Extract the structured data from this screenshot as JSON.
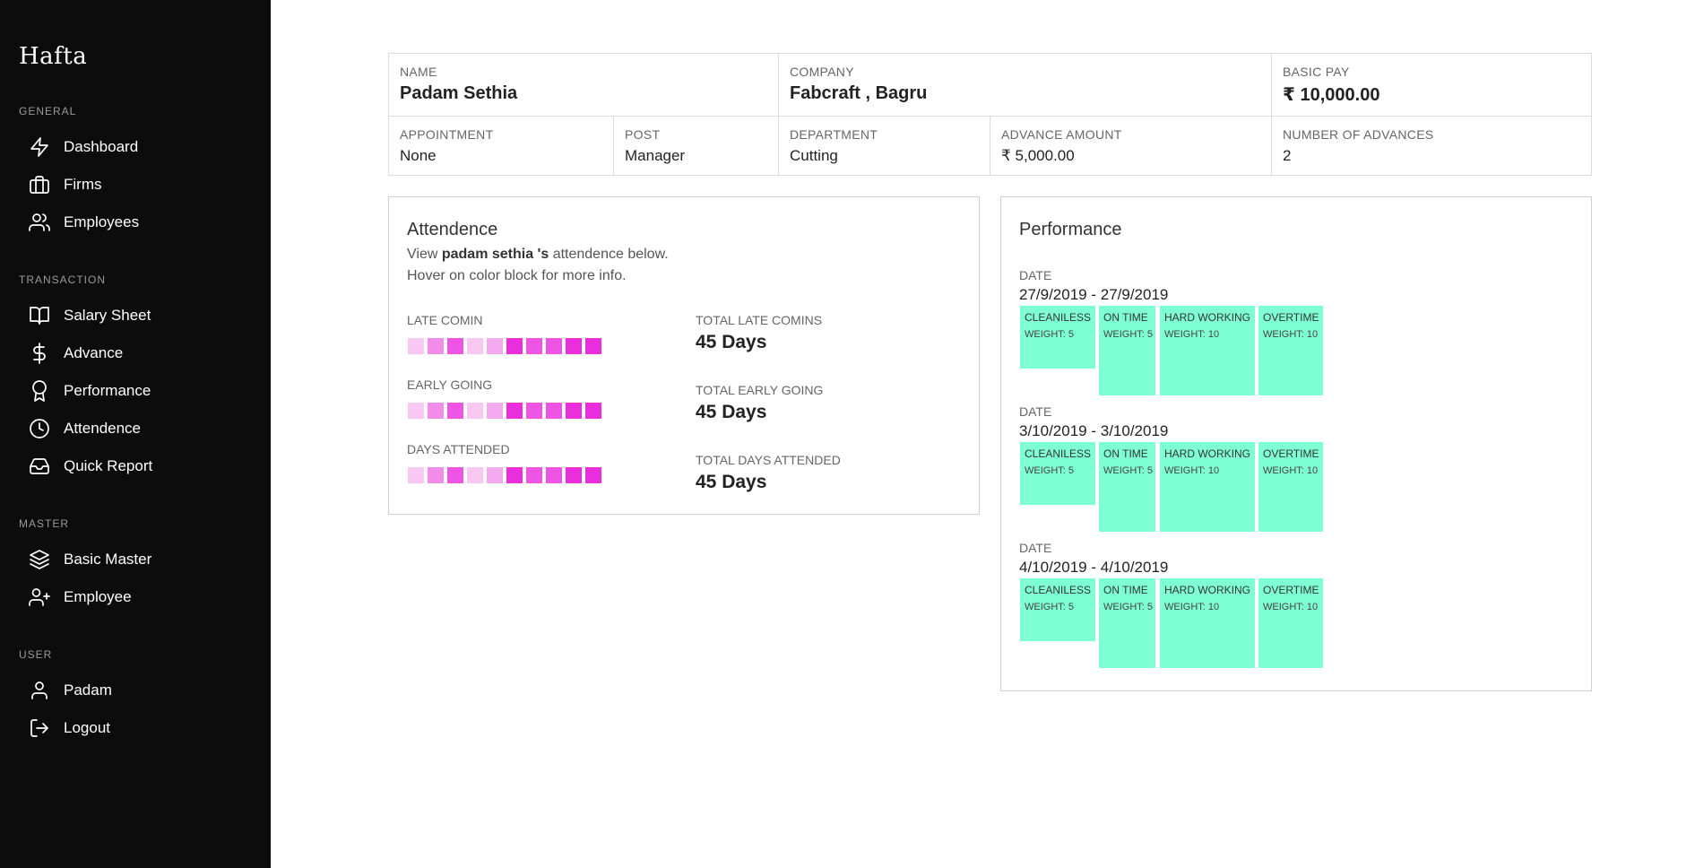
{
  "app": {
    "brand": "Hafta"
  },
  "sidebar": {
    "sections": [
      {
        "title": "GENERAL",
        "items": [
          {
            "label": "Dashboard",
            "icon": "lightning-icon"
          },
          {
            "label": "Firms",
            "icon": "briefcase-icon"
          },
          {
            "label": "Employees",
            "icon": "users-icon"
          }
        ]
      },
      {
        "title": "TRANSACTION",
        "items": [
          {
            "label": "Salary Sheet",
            "icon": "book-open-icon"
          },
          {
            "label": "Advance",
            "icon": "dollar-icon"
          },
          {
            "label": "Performance",
            "icon": "award-icon"
          },
          {
            "label": "Attendence",
            "icon": "clock-icon"
          },
          {
            "label": "Quick Report",
            "icon": "inbox-icon"
          }
        ]
      },
      {
        "title": "MASTER",
        "items": [
          {
            "label": "Basic Master",
            "icon": "layers-icon"
          },
          {
            "label": "Employee",
            "icon": "user-plus-icon"
          }
        ]
      },
      {
        "title": "USER",
        "items": [
          {
            "label": "Padam",
            "icon": "user-icon"
          },
          {
            "label": "Logout",
            "icon": "logout-icon"
          }
        ]
      }
    ]
  },
  "employee": {
    "name_label": "NAME",
    "name": "Padam Sethia",
    "company_label": "COMPANY",
    "company": "Fabcraft , Bagru",
    "basic_pay_label": "BASIC PAY",
    "basic_pay": "₹ 10,000.00",
    "appointment_label": "APPOINTMENT",
    "appointment": "None",
    "post_label": "POST",
    "post": "Manager",
    "department_label": "DEPARTMENT",
    "department": "Cutting",
    "advance_amount_label": "ADVANCE AMOUNT",
    "advance_amount": "₹ 5,000.00",
    "num_advances_label": "NUMBER of ADVANCES",
    "num_advances": "2"
  },
  "attendence": {
    "title": "Attendence",
    "desc_prefix": "View ",
    "desc_name": "padam sethia 's",
    "desc_suffix": " attendence below.",
    "desc_line2": "Hover on color block for more info.",
    "block_colors": [
      "#f8c8f3",
      "#f28bea",
      "#ee55e4",
      "#f8c8f3",
      "#f3a9ed",
      "#ea2ede",
      "#ee55e4",
      "#ee55e4",
      "#ea2ede",
      "#ea2ede"
    ],
    "rows": [
      {
        "label": "LATE COMIN",
        "total_label": "TOTAL LATE COMINS",
        "total_value": "45 Days"
      },
      {
        "label": "EARLY GOING",
        "total_label": "TOTAL EARLY GOING",
        "total_value": "45 Days"
      },
      {
        "label": "DAYS ATTENDED",
        "total_label": "TOTAL DAYS ATTENDED",
        "total_value": "45 Days"
      }
    ]
  },
  "performance": {
    "title": "Performance",
    "tile_color": "#7fffd4",
    "entries": [
      {
        "date_label": "DATE",
        "date": "27/9/2019 - 27/9/2019",
        "tiles": [
          {
            "title": "CLEANILESS",
            "weight": "WEIGHT: 5"
          },
          {
            "title": "ON TIME",
            "weight": "WEIGHT: 5"
          },
          {
            "title": "HARD WORKING",
            "weight": "WEIGHT: 10"
          },
          {
            "title": "OVERTIME",
            "weight": "WEIGHT: 10"
          }
        ]
      },
      {
        "date_label": "DATE",
        "date": "3/10/2019 - 3/10/2019",
        "tiles": [
          {
            "title": "CLEANILESS",
            "weight": "WEIGHT: 5"
          },
          {
            "title": "ON TIME",
            "weight": "WEIGHT: 5"
          },
          {
            "title": "HARD WORKING",
            "weight": "WEIGHT: 10"
          },
          {
            "title": "OVERTIME",
            "weight": "WEIGHT: 10"
          }
        ]
      },
      {
        "date_label": "DATE",
        "date": "4/10/2019 - 4/10/2019",
        "tiles": [
          {
            "title": "CLEANILESS",
            "weight": "WEIGHT: 5"
          },
          {
            "title": "ON TIME",
            "weight": "WEIGHT: 5"
          },
          {
            "title": "HARD WORKING",
            "weight": "WEIGHT: 10"
          },
          {
            "title": "OVERTIME",
            "weight": "WEIGHT: 10"
          }
        ]
      }
    ]
  }
}
